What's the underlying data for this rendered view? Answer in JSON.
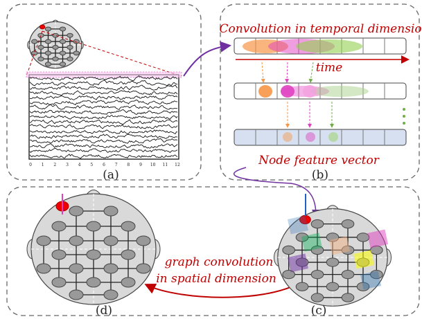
{
  "panel_a": {
    "label": "(a)",
    "x_ticks": [
      0,
      1,
      2,
      3,
      4,
      5,
      6,
      7,
      8,
      9,
      10,
      11,
      12
    ]
  },
  "panel_b": {
    "title": "Convolution in temporal dimension",
    "axis_label": "time",
    "caption": "Node feature vector",
    "label": "(b)"
  },
  "panel_c": {
    "label": "(c)"
  },
  "panel_d": {
    "label": "(d)"
  },
  "arrow_text": [
    "graph convolution",
    "in spatial dimension"
  ]
}
